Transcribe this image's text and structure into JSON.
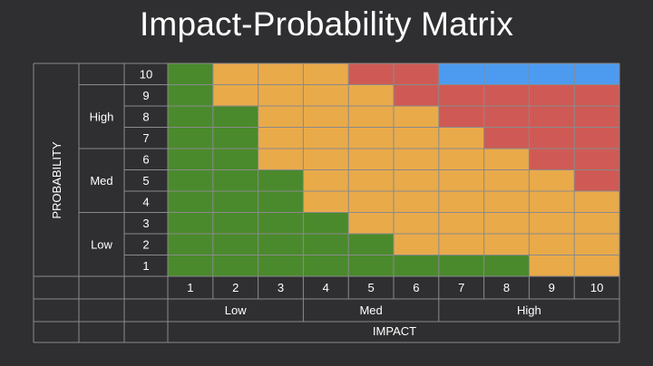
{
  "title": "Impact-Probability Matrix",
  "axes": {
    "probability_label": "PROBABILITY",
    "impact_label": "IMPACT"
  },
  "probability_groups": [
    {
      "label": "High",
      "levels": [
        9,
        8,
        7
      ]
    },
    {
      "label": "Med",
      "levels": [
        6,
        5,
        4
      ]
    },
    {
      "label": "Low",
      "levels": [
        3,
        2,
        1
      ]
    }
  ],
  "impact_groups": [
    {
      "label": "Low",
      "levels": [
        1,
        2,
        3
      ]
    },
    {
      "label": "Med",
      "levels": [
        4,
        5,
        6
      ]
    },
    {
      "label": "High",
      "levels": [
        7,
        8,
        9,
        10
      ]
    }
  ],
  "probability_levels": [
    "10",
    "9",
    "8",
    "7",
    "6",
    "5",
    "4",
    "3",
    "2",
    "1"
  ],
  "impact_levels": [
    "1",
    "2",
    "3",
    "4",
    "5",
    "6",
    "7",
    "8",
    "9",
    "10"
  ],
  "colors": {
    "G": "#4a8a2c",
    "Y": "#e9aa4a",
    "R": "#cf5a55",
    "B": "#4d9bf0",
    "grid_line": "#8a8a8a",
    "background": "#2f2f31"
  },
  "cell_colors": [
    "GYYYRRBBBB",
    "GYYYYRRRRR",
    "GGYYYYRRRR",
    "GGYYYYYRRR",
    "GGYYYYYYRR",
    "GGGYYYYYYR",
    "GGGYYYYYYY",
    "GGGGYYYYYY",
    "GGGGGYYYYY",
    "GGGGGGGGYY"
  ]
}
